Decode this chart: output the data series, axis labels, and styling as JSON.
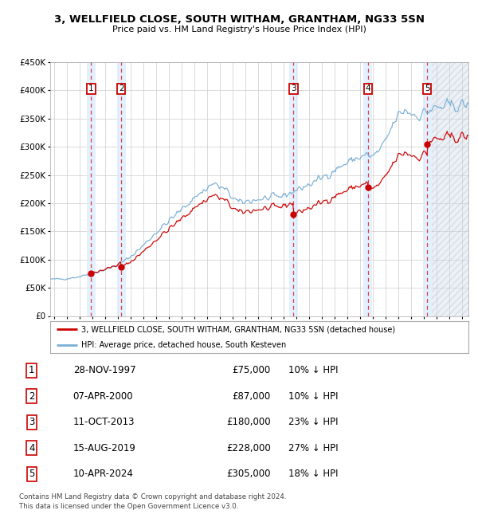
{
  "title": "3, WELLFIELD CLOSE, SOUTH WITHAM, GRANTHAM, NG33 5SN",
  "subtitle": "Price paid vs. HM Land Registry's House Price Index (HPI)",
  "transactions": [
    {
      "num": 1,
      "date": "1997-11-28",
      "price": 75000,
      "pct": "10%",
      "x_year": 1997.91
    },
    {
      "num": 2,
      "date": "2000-04-07",
      "price": 87000,
      "pct": "10%",
      "x_year": 2000.27
    },
    {
      "num": 3,
      "date": "2013-10-11",
      "price": 180000,
      "pct": "23%",
      "x_year": 2013.78
    },
    {
      "num": 4,
      "date": "2019-08-15",
      "price": 228000,
      "pct": "27%",
      "x_year": 2019.62
    },
    {
      "num": 5,
      "date": "2024-04-10",
      "price": 305000,
      "pct": "18%",
      "x_year": 2024.27
    }
  ],
  "legend_line1": "3, WELLFIELD CLOSE, SOUTH WITHAM, GRANTHAM, NG33 5SN (detached house)",
  "legend_line2": "HPI: Average price, detached house, South Kesteven",
  "table_rows": [
    [
      "1",
      "28-NOV-1997",
      "£75,000",
      "10% ↓ HPI"
    ],
    [
      "2",
      "07-APR-2000",
      "£87,000",
      "10% ↓ HPI"
    ],
    [
      "3",
      "11-OCT-2013",
      "£180,000",
      "23% ↓ HPI"
    ],
    [
      "4",
      "15-AUG-2019",
      "£228,000",
      "27% ↓ HPI"
    ],
    [
      "5",
      "10-APR-2024",
      "£305,000",
      "18% ↓ HPI"
    ]
  ],
  "footer": [
    "Contains HM Land Registry data © Crown copyright and database right 2024.",
    "This data is licensed under the Open Government Licence v3.0."
  ],
  "ylim": [
    0,
    450000
  ],
  "xlim_start": 1994.7,
  "xlim_end": 2027.5,
  "bg_color": "#ffffff",
  "grid_color": "#cccccc",
  "hpi_line_color": "#7bafd4",
  "price_line_color": "#cc0000",
  "dot_color": "#cc0000",
  "vband_color": "#ddeeff",
  "future_start": 2024.6,
  "hpi_anchors_x": [
    1995.0,
    1996.0,
    1997.0,
    1998.0,
    1999.0,
    2000.0,
    2001.0,
    2002.0,
    2003.0,
    2004.5,
    2006.0,
    2007.5,
    2008.5,
    2009.5,
    2010.5,
    2011.5,
    2012.5,
    2013.5,
    2014.5,
    2015.5,
    2016.5,
    2017.5,
    2018.5,
    2019.5,
    2020.0,
    2020.8,
    2021.5,
    2022.0,
    2022.5,
    2023.0,
    2023.5,
    2024.0,
    2024.5,
    2025.0,
    2025.5,
    2026.0,
    2026.5,
    2027.0,
    2027.5
  ],
  "hpi_anchors_y": [
    65000,
    66500,
    70000,
    76000,
    82000,
    90000,
    105000,
    125000,
    148000,
    178000,
    210000,
    235000,
    222000,
    200000,
    205000,
    208000,
    210000,
    218000,
    228000,
    238000,
    252000,
    265000,
    278000,
    285000,
    282000,
    300000,
    335000,
    355000,
    365000,
    360000,
    355000,
    360000,
    365000,
    368000,
    370000,
    372000,
    373000,
    374000,
    375000
  ]
}
